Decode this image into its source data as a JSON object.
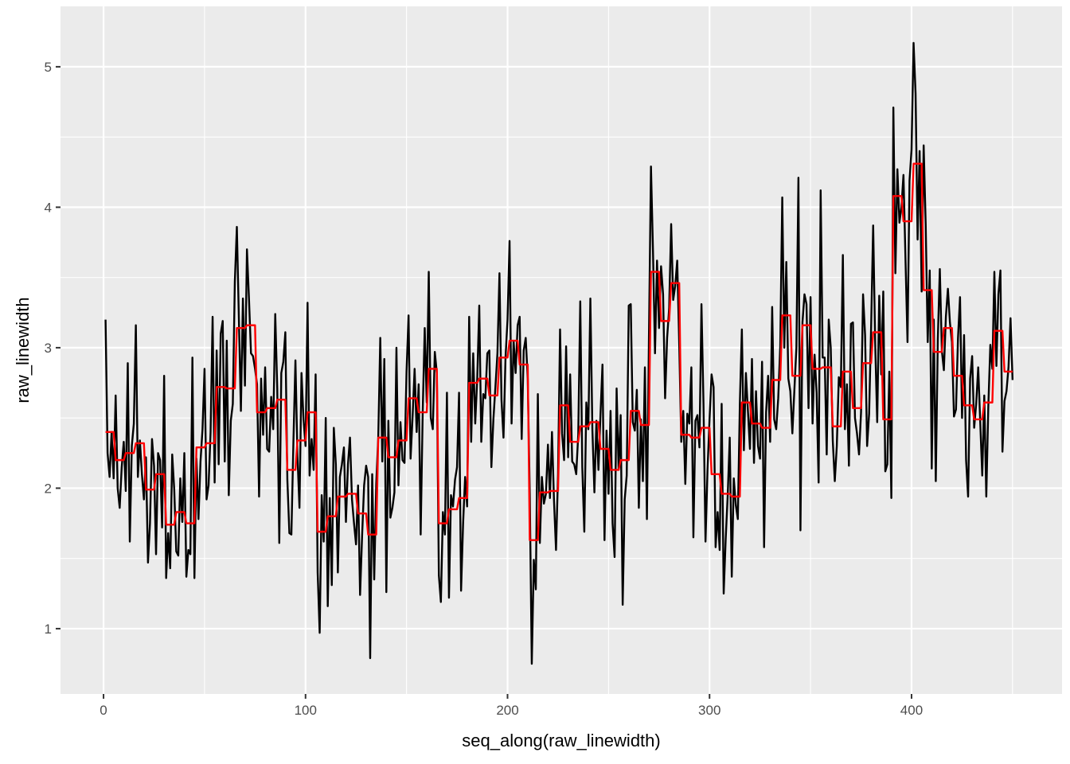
{
  "chart_data": {
    "type": "line",
    "title": "",
    "xlabel": "seq_along(raw_linewidth)",
    "ylabel": "raw_linewidth",
    "xlim": [
      -21.3,
      474.5
    ],
    "ylim": [
      0.535,
      5.43
    ],
    "x_ticks": [
      0,
      100,
      200,
      300,
      400
    ],
    "x_tick_labels": [
      "0",
      "100",
      "200",
      "300",
      "400"
    ],
    "y_ticks": [
      1,
      2,
      3,
      4,
      5
    ],
    "y_tick_labels": [
      "1",
      "2",
      "3",
      "4",
      "5"
    ],
    "grid": true,
    "legend": "none",
    "colors": {
      "panel": "#EBEBEB",
      "grid": "#FFFFFF",
      "raw": "#000000",
      "smoothed": "#FF0000"
    },
    "series": [
      {
        "name": "raw_linewidth",
        "color": "#000000",
        "values": [
          3.2,
          2.25,
          2.08,
          2.4,
          2.07,
          2.66,
          2.0,
          1.86,
          2.15,
          2.33,
          1.98,
          2.89,
          1.62,
          2.3,
          2.46,
          3.16,
          2.08,
          2.34,
          2.1,
          1.92,
          2.22,
          1.47,
          1.75,
          2.35,
          2.16,
          1.53,
          2.25,
          2.2,
          1.72,
          2.8,
          1.36,
          1.68,
          1.43,
          2.24,
          1.99,
          1.55,
          1.52,
          2.07,
          1.76,
          2.25,
          1.37,
          1.56,
          1.53,
          2.93,
          1.36,
          2.21,
          1.78,
          2.19,
          2.42,
          2.85,
          1.92,
          2.02,
          2.4,
          3.22,
          2.04,
          2.98,
          2.17,
          3.1,
          3.19,
          2.19,
          3.05,
          1.95,
          2.48,
          2.6,
          3.47,
          3.86,
          3.21,
          2.55,
          3.35,
          2.73,
          3.7,
          3.35,
          2.96,
          2.94,
          2.85,
          2.74,
          1.94,
          2.78,
          2.38,
          2.86,
          2.28,
          2.26,
          2.65,
          2.42,
          3.24,
          2.71,
          1.61,
          2.82,
          2.9,
          3.11,
          2.06,
          1.68,
          1.67,
          2.33,
          2.91,
          2.23,
          1.86,
          2.82,
          2.49,
          2.3,
          3.32,
          2.09,
          2.35,
          2.13,
          2.81,
          1.4,
          0.97,
          1.95,
          1.62,
          2.5,
          1.16,
          1.93,
          1.31,
          2.43,
          2.17,
          1.4,
          2.08,
          2.17,
          2.29,
          1.76,
          2.17,
          2.36,
          1.92,
          1.75,
          1.6,
          2.02,
          1.24,
          1.66,
          2.02,
          2.16,
          2.08,
          0.79,
          2.1,
          1.35,
          2.03,
          2.36,
          3.07,
          2.19,
          2.92,
          1.26,
          2.48,
          1.79,
          1.86,
          1.97,
          3.0,
          2.02,
          2.47,
          2.2,
          2.18,
          2.83,
          3.23,
          2.21,
          2.51,
          2.85,
          2.4,
          2.74,
          1.67,
          2.54,
          3.14,
          2.61,
          3.54,
          2.5,
          2.42,
          2.97,
          2.82,
          1.38,
          1.19,
          1.83,
          1.67,
          2.68,
          1.22,
          1.95,
          1.87,
          2.06,
          2.15,
          2.68,
          1.27,
          1.75,
          2.08,
          1.87,
          3.22,
          2.33,
          2.96,
          2.46,
          2.78,
          3.3,
          2.33,
          2.67,
          2.64,
          2.96,
          2.98,
          2.15,
          2.49,
          2.72,
          2.96,
          3.53,
          2.63,
          2.36,
          2.93,
          3.2,
          3.76,
          2.46,
          3.05,
          2.82,
          3.16,
          3.22,
          2.35,
          2.98,
          3.07,
          2.78,
          1.96,
          0.75,
          1.49,
          1.28,
          2.67,
          1.61,
          2.08,
          1.89,
          1.96,
          2.31,
          1.93,
          2.4,
          1.91,
          1.56,
          2.1,
          3.13,
          2.39,
          2.2,
          3.01,
          2.22,
          2.81,
          2.19,
          2.17,
          2.1,
          2.38,
          3.33,
          2.15,
          1.69,
          2.61,
          2.42,
          3.35,
          2.42,
          1.97,
          2.48,
          2.13,
          2.52,
          2.88,
          1.63,
          2.41,
          1.96,
          2.55,
          1.75,
          1.51,
          2.71,
          2.13,
          2.52,
          1.17,
          1.92,
          2.09,
          3.3,
          3.31,
          2.47,
          2.41,
          2.7,
          1.86,
          2.49,
          2.05,
          2.86,
          1.78,
          3.07,
          4.29,
          3.69,
          2.96,
          3.62,
          3.14,
          3.58,
          3.38,
          2.64,
          3.07,
          3.28,
          3.88,
          3.34,
          3.44,
          3.62,
          3.02,
          2.33,
          2.55,
          2.03,
          2.53,
          2.46,
          2.86,
          1.65,
          2.48,
          2.52,
          2.29,
          3.31,
          2.6,
          1.62,
          2.13,
          2.49,
          2.81,
          2.72,
          1.58,
          1.83,
          1.56,
          2.6,
          1.25,
          1.64,
          1.95,
          2.36,
          1.37,
          2.07,
          1.88,
          1.78,
          2.6,
          3.13,
          2.27,
          2.82,
          2.55,
          2.28,
          2.92,
          2.18,
          2.69,
          2.3,
          2.21,
          2.9,
          1.58,
          2.54,
          2.8,
          2.33,
          3.29,
          2.49,
          2.42,
          2.64,
          3.01,
          4.07,
          3.0,
          3.61,
          2.78,
          2.69,
          2.39,
          2.7,
          3.0,
          4.21,
          1.7,
          3.18,
          3.38,
          3.31,
          2.57,
          3.36,
          2.46,
          2.95,
          2.68,
          2.04,
          4.12,
          2.93,
          2.93,
          2.24,
          3.2,
          3.0,
          2.34,
          2.05,
          2.3,
          2.79,
          2.72,
          3.66,
          2.42,
          2.74,
          2.16,
          3.17,
          3.18,
          2.5,
          2.39,
          2.24,
          2.54,
          3.38,
          3.09,
          2.3,
          2.53,
          3.15,
          3.87,
          3.03,
          2.47,
          3.37,
          2.81,
          3.4,
          2.12,
          2.17,
          2.83,
          1.93,
          4.71,
          3.53,
          4.27,
          3.89,
          4.0,
          4.23,
          3.63,
          3.04,
          4.19,
          4.41,
          5.17,
          4.81,
          3.77,
          4.4,
          3.4,
          4.44,
          3.88,
          3.04,
          3.55,
          2.14,
          3.2,
          2.05,
          3.06,
          3.56,
          2.98,
          2.84,
          3.22,
          3.42,
          3.18,
          3.04,
          2.51,
          2.56,
          3.07,
          3.36,
          2.5,
          3.09,
          2.2,
          1.94,
          2.78,
          2.94,
          2.43,
          2.6,
          2.86,
          2.47,
          2.09,
          2.66,
          1.94,
          2.58,
          3.02,
          2.85,
          3.54,
          2.87,
          3.38,
          3.55,
          2.26,
          2.62,
          2.69,
          2.86,
          3.21,
          2.77
        ]
      },
      {
        "name": "block_mean",
        "color": "#FF0000",
        "block_size": 5,
        "block_means": [
          2.4,
          2.2,
          2.25,
          2.32,
          1.99,
          2.1,
          1.74,
          1.83,
          1.75,
          2.29,
          2.32,
          2.72,
          2.71,
          3.14,
          3.16,
          2.54,
          2.57,
          2.63,
          2.13,
          2.34,
          2.54,
          1.69,
          1.8,
          1.94,
          1.96,
          1.82,
          1.67,
          2.36,
          2.22,
          2.34,
          2.64,
          2.54,
          2.85,
          1.75,
          1.85,
          1.93,
          2.75,
          2.78,
          2.66,
          2.93,
          3.05,
          2.88,
          1.63,
          1.97,
          1.98,
          2.59,
          2.33,
          2.44,
          2.47,
          2.28,
          2.13,
          2.2,
          2.55,
          2.45,
          3.54,
          3.19,
          3.46,
          2.38,
          2.36,
          2.43,
          2.1,
          1.96,
          1.94,
          2.61,
          2.46,
          2.43,
          2.77,
          3.23,
          2.8,
          3.16,
          2.85,
          2.86,
          2.44,
          2.83,
          2.57,
          2.89,
          3.11,
          2.49,
          4.08,
          3.9,
          4.31,
          3.41,
          2.97,
          3.14,
          2.8,
          2.59,
          2.49,
          2.61,
          3.12,
          2.83
        ]
      }
    ]
  }
}
